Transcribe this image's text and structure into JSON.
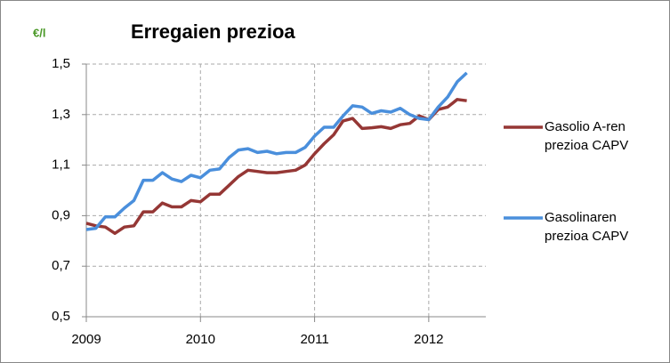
{
  "chart_data": {
    "type": "line",
    "title": "Erregaien prezioa",
    "y_label": "€/l",
    "x": [
      2009,
      2009.0833,
      2009.1667,
      2009.25,
      2009.3333,
      2009.4167,
      2009.5,
      2009.5833,
      2009.6667,
      2009.75,
      2009.8333,
      2009.9167,
      2010,
      2010.0833,
      2010.1667,
      2010.25,
      2010.3333,
      2010.4167,
      2010.5,
      2010.5833,
      2010.6667,
      2010.75,
      2010.8333,
      2010.9167,
      2011,
      2011.0833,
      2011.1667,
      2011.25,
      2011.3333,
      2011.4167,
      2011.5,
      2011.5833,
      2011.6667,
      2011.75,
      2011.8333,
      2011.9167,
      2012,
      2012.0833,
      2012.1667,
      2012.25,
      2012.3333
    ],
    "series": [
      {
        "name": "Gasolio A-ren prezioa CAPV",
        "color": "#953735",
        "values": [
          0.87,
          0.86,
          0.855,
          0.83,
          0.855,
          0.86,
          0.915,
          0.915,
          0.95,
          0.935,
          0.935,
          0.96,
          0.955,
          0.985,
          0.985,
          1.02,
          1.055,
          1.08,
          1.075,
          1.07,
          1.07,
          1.075,
          1.08,
          1.1,
          1.145,
          1.185,
          1.22,
          1.275,
          1.285,
          1.245,
          1.248,
          1.252,
          1.245,
          1.26,
          1.265,
          1.295,
          1.28,
          1.32,
          1.33,
          1.36,
          1.355
        ]
      },
      {
        "name": "Gasolinaren prezioa CAPV",
        "color": "#4a8fdc",
        "values": [
          0.845,
          0.85,
          0.895,
          0.895,
          0.93,
          0.96,
          1.04,
          1.04,
          1.07,
          1.045,
          1.035,
          1.06,
          1.05,
          1.08,
          1.085,
          1.13,
          1.16,
          1.165,
          1.15,
          1.155,
          1.145,
          1.15,
          1.15,
          1.17,
          1.215,
          1.25,
          1.25,
          1.295,
          1.335,
          1.33,
          1.305,
          1.315,
          1.31,
          1.325,
          1.3,
          1.285,
          1.28,
          1.33,
          1.37,
          1.43,
          1.465
        ]
      }
    ],
    "xlim": [
      2009,
      2012.5
    ],
    "xticks": [
      2009,
      2010,
      2011,
      2012
    ],
    "ylim": [
      0.5,
      1.5
    ],
    "yticks": [
      {
        "value": 0.5,
        "label": "0,5"
      },
      {
        "value": 0.7,
        "label": "0,7"
      },
      {
        "value": 0.9,
        "label": "0,9"
      },
      {
        "value": 1.1,
        "label": "1,1"
      },
      {
        "value": 1.3,
        "label": "1,3"
      },
      {
        "value": 1.5,
        "label": "1,5"
      }
    ],
    "grid": true,
    "legend": "right"
  }
}
